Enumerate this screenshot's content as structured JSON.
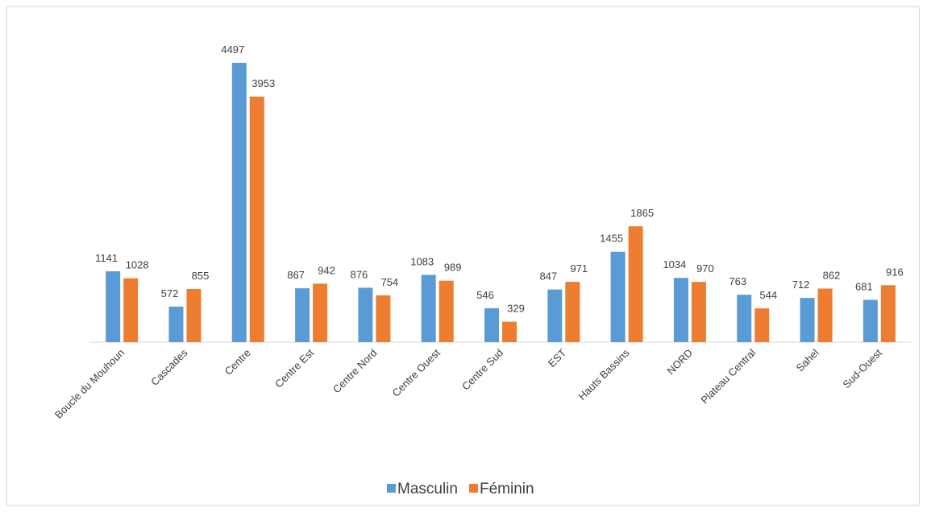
{
  "chart_data": {
    "type": "bar",
    "categories": [
      "Boucle du Mouhoun",
      "Cascades",
      "Centre",
      "Centre Est",
      "Centre Nord",
      "Centre Ouest",
      "Centre Sud",
      "EST",
      "Hauts Bassins",
      "NORD",
      "Plateau Central",
      "Sahel",
      "Sud-Ouest"
    ],
    "series": [
      {
        "name": "Masculin",
        "color": "#5b9bd5",
        "values": [
          1141,
          572,
          4497,
          867,
          876,
          1083,
          546,
          847,
          1455,
          1034,
          763,
          712,
          681
        ]
      },
      {
        "name": "Féminin",
        "color": "#ed7d31",
        "values": [
          1028,
          855,
          3953,
          942,
          754,
          989,
          329,
          971,
          1865,
          970,
          544,
          862,
          916
        ]
      }
    ],
    "legend": "bottom"
  }
}
